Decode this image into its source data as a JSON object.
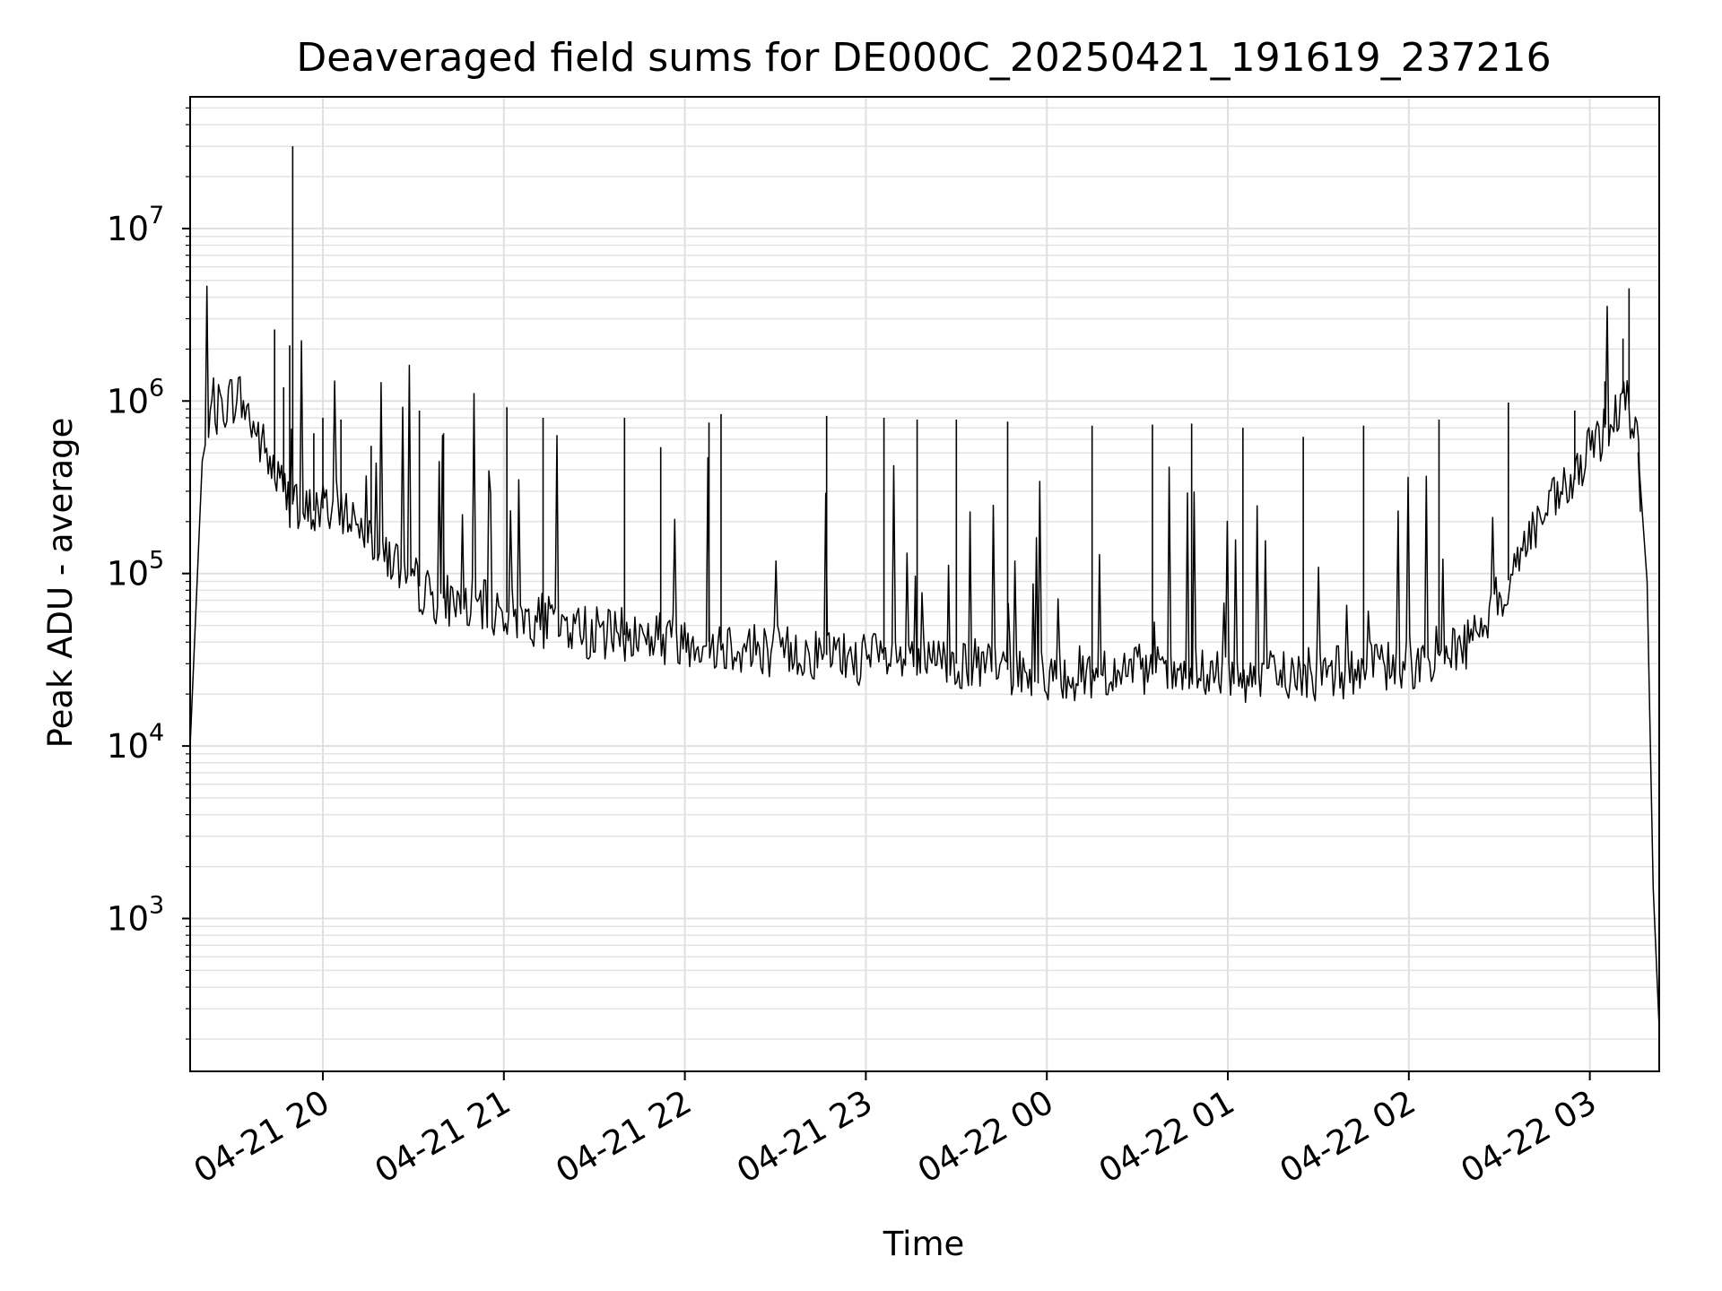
{
  "chart_data": {
    "type": "line",
    "title": "Deaveraged field sums for DE000C_20250421_191619_237216",
    "xlabel": "Time",
    "ylabel": "Peak ADU - average",
    "x_range": [
      "2025-04-21 19:16",
      "2025-04-22 03:23"
    ],
    "y_scale": "log",
    "ylim": [
      130,
      58000000
    ],
    "grid": true,
    "x_ticks": [
      "04-21 20",
      "04-21 21",
      "04-21 22",
      "04-21 23",
      "04-22 00",
      "04-22 01",
      "04-22 02",
      "04-22 03"
    ],
    "y_ticks": [
      {
        "base": "10",
        "exp": "3",
        "value": 1000
      },
      {
        "base": "10",
        "exp": "4",
        "value": 10000
      },
      {
        "base": "10",
        "exp": "5",
        "value": 100000
      },
      {
        "base": "10",
        "exp": "6",
        "value": 1000000
      },
      {
        "base": "10",
        "exp": "7",
        "value": 10000000
      }
    ],
    "line_color": "#000000",
    "baseline": [
      {
        "x": "2025-04-21 19:16",
        "y": 10000
      },
      {
        "x": "2025-04-21 19:20",
        "y": 450000
      },
      {
        "x": "2025-04-21 19:25",
        "y": 900000
      },
      {
        "x": "2025-04-21 19:32",
        "y": 1100000
      },
      {
        "x": "2025-04-21 19:38",
        "y": 650000
      },
      {
        "x": "2025-04-21 19:45",
        "y": 350000
      },
      {
        "x": "2025-04-21 19:52",
        "y": 220000
      },
      {
        "x": "2025-04-21 20:05",
        "y": 250000
      },
      {
        "x": "2025-04-21 20:15",
        "y": 180000
      },
      {
        "x": "2025-04-21 20:25",
        "y": 110000
      },
      {
        "x": "2025-04-21 20:35",
        "y": 75000
      },
      {
        "x": "2025-04-21 21:00",
        "y": 60000
      },
      {
        "x": "2025-04-21 21:30",
        "y": 45000
      },
      {
        "x": "2025-04-21 22:00",
        "y": 42000
      },
      {
        "x": "2025-04-21 22:30",
        "y": 36000
      },
      {
        "x": "2025-04-21 23:00",
        "y": 32000
      },
      {
        "x": "2025-04-21 23:30",
        "y": 30000
      },
      {
        "x": "2025-04-22 00:00",
        "y": 26000
      },
      {
        "x": "2025-04-22 00:30",
        "y": 27000
      },
      {
        "x": "2025-04-22 01:00",
        "y": 25000
      },
      {
        "x": "2025-04-22 01:30",
        "y": 26000
      },
      {
        "x": "2025-04-22 02:00",
        "y": 30000
      },
      {
        "x": "2025-04-22 02:20",
        "y": 40000
      },
      {
        "x": "2025-04-22 02:30",
        "y": 70000
      },
      {
        "x": "2025-04-22 02:40",
        "y": 170000
      },
      {
        "x": "2025-04-22 02:55",
        "y": 350000
      },
      {
        "x": "2025-04-22 03:05",
        "y": 700000
      },
      {
        "x": "2025-04-22 03:12",
        "y": 1200000
      },
      {
        "x": "2025-04-22 03:16",
        "y": 500000
      },
      {
        "x": "2025-04-22 03:19",
        "y": 90000
      },
      {
        "x": "2025-04-22 03:21",
        "y": 1500
      },
      {
        "x": "2025-04-22 03:23",
        "y": 230
      }
    ],
    "spikes": [
      {
        "x": "2025-04-21 19:50",
        "y": 30000000
      },
      {
        "x": "2025-04-21 19:49",
        "y": 2100000
      },
      {
        "x": "2025-04-21 19:47",
        "y": 1200000
      },
      {
        "x": "2025-04-21 19:44",
        "y": 2600000
      },
      {
        "x": "2025-04-21 19:57",
        "y": 650000
      },
      {
        "x": "2025-04-21 20:00",
        "y": 800000
      },
      {
        "x": "2025-04-21 20:06",
        "y": 780000
      },
      {
        "x": "2025-04-21 20:16",
        "y": 550000
      },
      {
        "x": "2025-04-21 20:32",
        "y": 880000
      },
      {
        "x": "2025-04-21 20:40",
        "y": 650000
      },
      {
        "x": "2025-04-21 21:01",
        "y": 920000
      },
      {
        "x": "2025-04-21 21:13",
        "y": 800000
      },
      {
        "x": "2025-04-21 21:40",
        "y": 800000
      },
      {
        "x": "2025-04-21 21:52",
        "y": 540000
      },
      {
        "x": "2025-04-21 22:08",
        "y": 750000
      },
      {
        "x": "2025-04-21 22:12",
        "y": 840000
      },
      {
        "x": "2025-04-21 22:47",
        "y": 820000
      },
      {
        "x": "2025-04-21 23:06",
        "y": 800000
      },
      {
        "x": "2025-04-21 23:17",
        "y": 780000
      },
      {
        "x": "2025-04-21 23:30",
        "y": 780000
      },
      {
        "x": "2025-04-21 23:47",
        "y": 760000
      },
      {
        "x": "2025-04-22 00:15",
        "y": 720000
      },
      {
        "x": "2025-04-22 00:35",
        "y": 730000
      },
      {
        "x": "2025-04-22 00:48",
        "y": 740000
      },
      {
        "x": "2025-04-22 01:05",
        "y": 700000
      },
      {
        "x": "2025-04-22 01:25",
        "y": 620000
      },
      {
        "x": "2025-04-22 01:45",
        "y": 720000
      },
      {
        "x": "2025-04-22 02:10",
        "y": 780000
      },
      {
        "x": "2025-04-22 02:33",
        "y": 980000
      },
      {
        "x": "2025-04-22 02:55",
        "y": 880000
      },
      {
        "x": "2025-04-22 03:05",
        "y": 1300000
      },
      {
        "x": "2025-04-22 03:11",
        "y": 2300000
      },
      {
        "x": "2025-04-22 03:13",
        "y": 4500000
      }
    ]
  }
}
